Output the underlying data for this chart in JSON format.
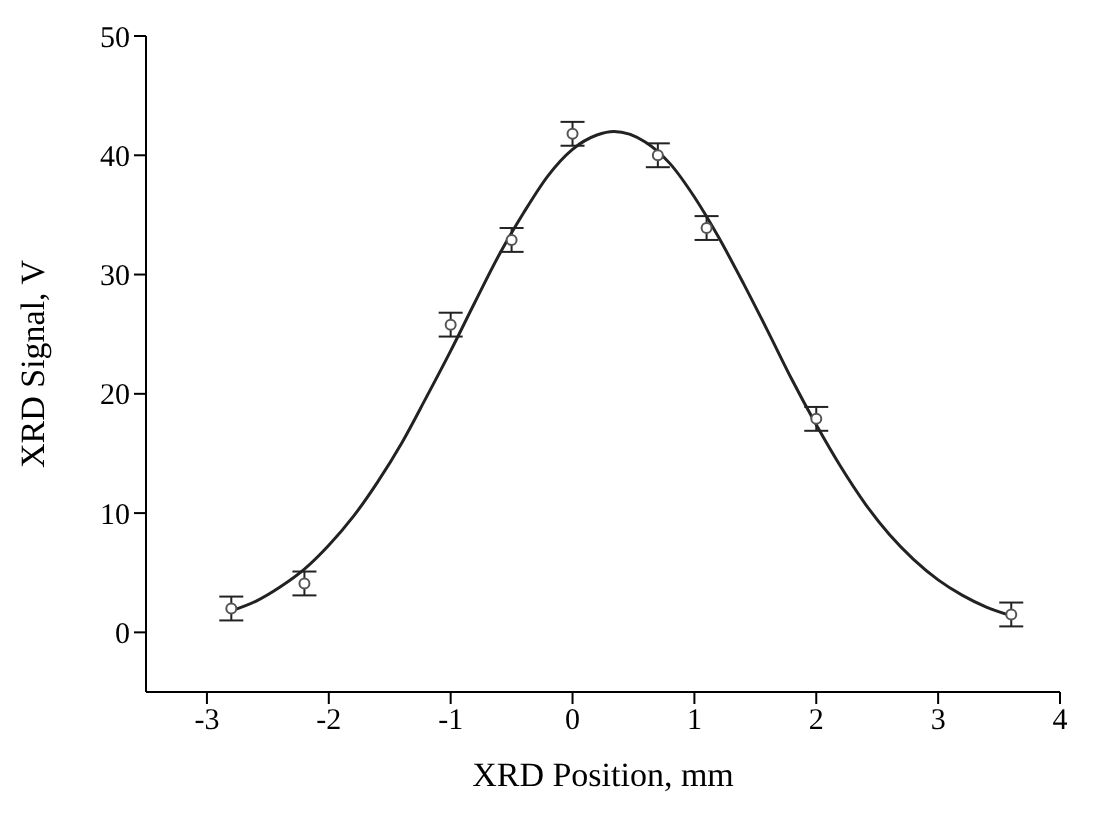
{
  "chart_data": {
    "type": "scatter",
    "xlabel": "XRD Position,  mm",
    "ylabel": "XRD Signal,  V",
    "xlim": [
      -3.5,
      4
    ],
    "xticks": [
      -3,
      -2,
      -1,
      0,
      1,
      2,
      3,
      4
    ],
    "ylim": [
      -5,
      50
    ],
    "yticks": [
      0,
      10,
      20,
      30,
      40,
      50
    ],
    "grid": false,
    "legend": false,
    "marker": "circle",
    "series": [
      {
        "color": "#555555",
        "x": [
          -2.8,
          -2.2,
          -1,
          -0.5,
          0,
          0.7,
          1.1,
          2,
          3.6
        ],
        "values": [
          2.0,
          4.1,
          25.8,
          32.9,
          41.8,
          40.0,
          33.9,
          17.9,
          1.5
        ],
        "errors": [
          1,
          1,
          1,
          1,
          1,
          1,
          1,
          1,
          1
        ]
      },
      {
        "type": "line",
        "color": "#222222",
        "line_style": "solid",
        "marker": "none",
        "x": [
          -2.8,
          -2.6,
          -2.4,
          -2.2,
          -2.0,
          -1.8,
          -1.6,
          -1.4,
          -1.2,
          -1.0,
          -0.8,
          -0.6,
          -0.4,
          -0.2,
          0,
          0.2,
          0.34,
          0.6,
          0.8,
          1.0,
          1.2,
          1.4,
          1.6,
          1.8,
          2.0,
          2.2,
          2.4,
          2.6,
          2.8,
          3.0,
          3.2,
          3.4,
          3.6
        ],
        "values": [
          1.8,
          2.6,
          3.8,
          5.3,
          7.3,
          9.7,
          12.6,
          15.9,
          19.7,
          23.6,
          27.7,
          31.7,
          35.2,
          38.3,
          40.5,
          41.7,
          42.0,
          41.1,
          39.3,
          36.5,
          33.1,
          29.3,
          25.3,
          21.2,
          17.4,
          13.9,
          10.8,
          8.2,
          6.1,
          4.4,
          3.1,
          2.1,
          1.4
        ]
      }
    ]
  }
}
